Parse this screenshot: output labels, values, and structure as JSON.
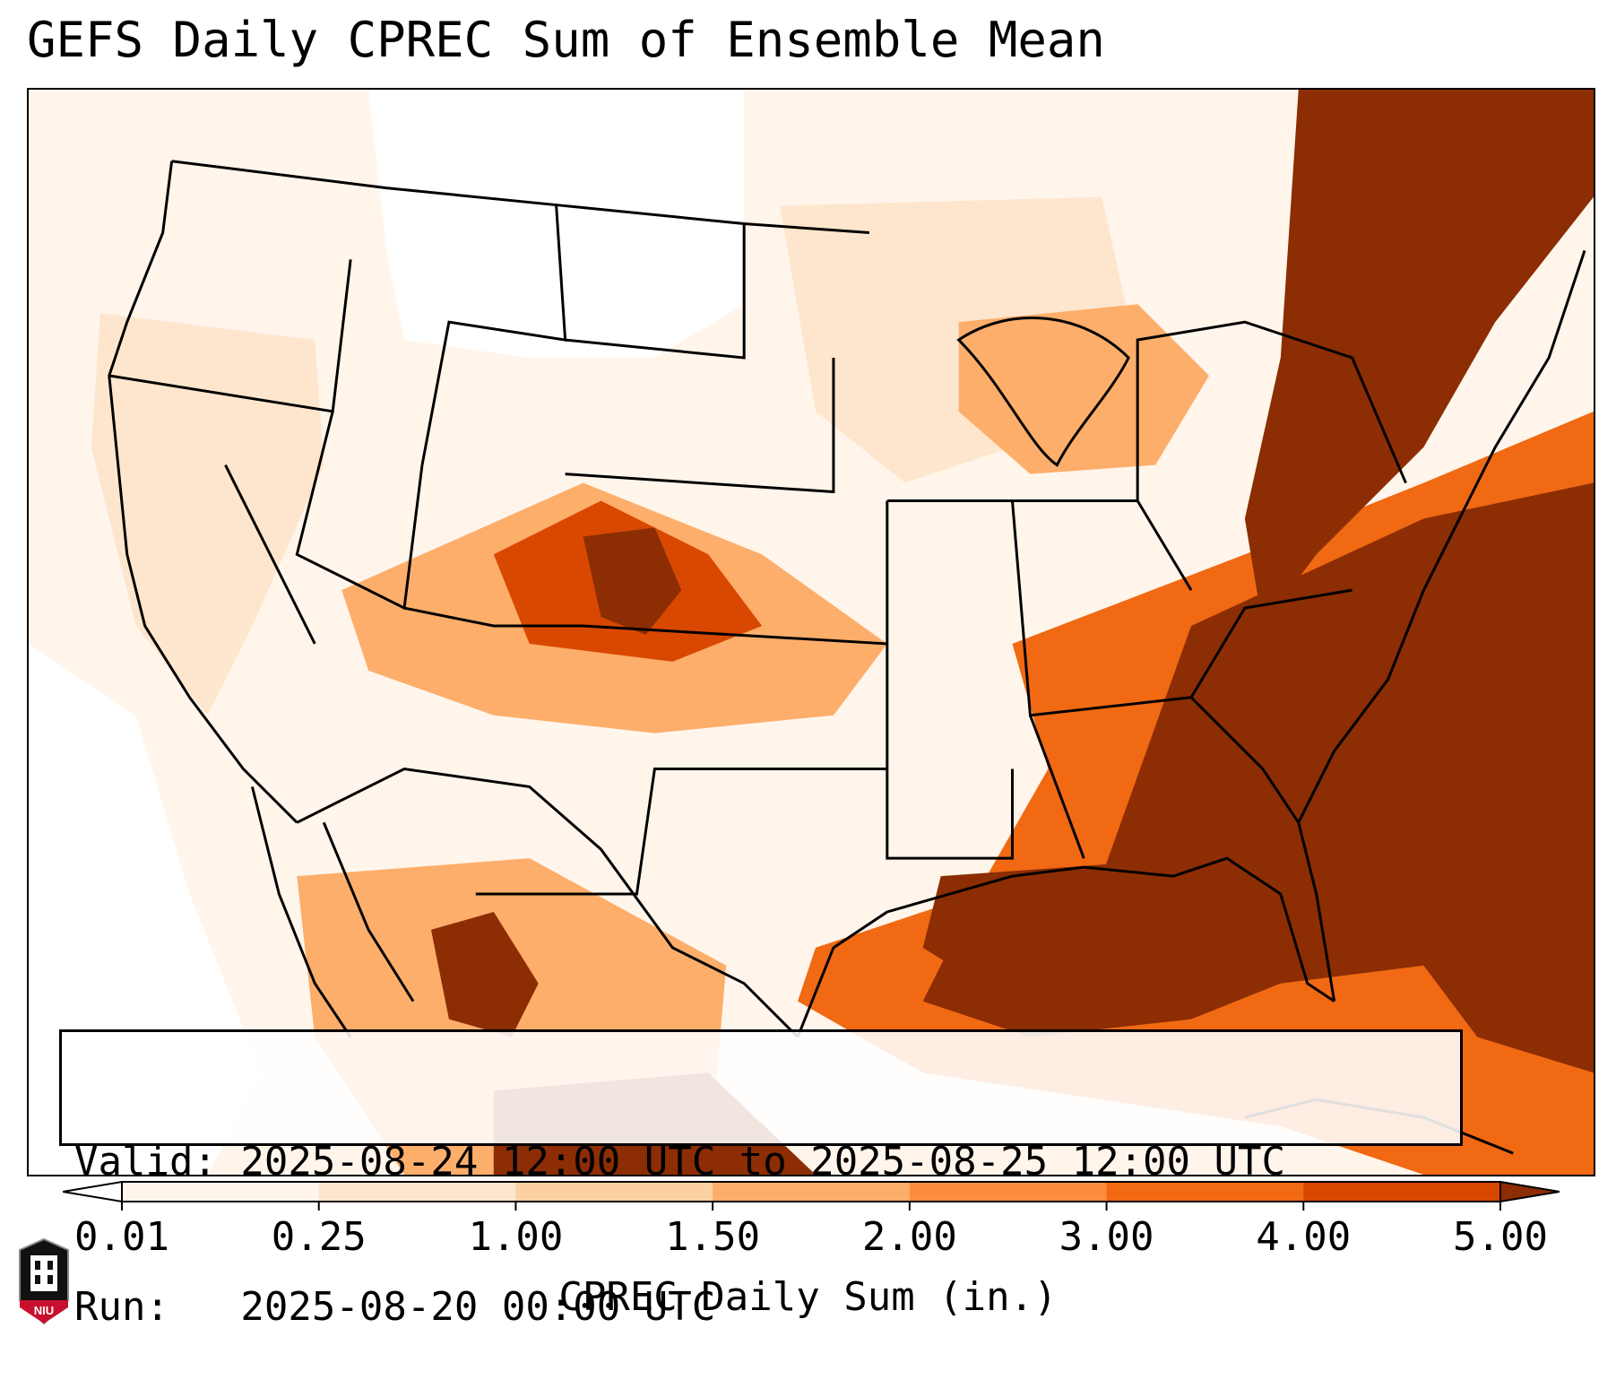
{
  "title": "GEFS Daily CPREC Sum of Ensemble Mean",
  "info": {
    "valid_line": "Valid: 2025-08-24 12:00 UTC to 2025-08-25 12:00 UTC",
    "run_line": "Run:   2025-08-20 00:00 UTC"
  },
  "colorbar": {
    "label": "CPREC Daily Sum (in.)",
    "ticks": [
      "0.01",
      "0.25",
      "1.00",
      "1.50",
      "2.00",
      "3.00",
      "4.00",
      "5.00"
    ],
    "colors": [
      "#fff5eb",
      "#fee6ce",
      "#fdd0a2",
      "#fdae6b",
      "#fd8d3c",
      "#f16913",
      "#d94801",
      "#8c2d04"
    ],
    "extend": "both"
  },
  "logo": {
    "name": "niu-logo",
    "text": "NIU"
  }
}
